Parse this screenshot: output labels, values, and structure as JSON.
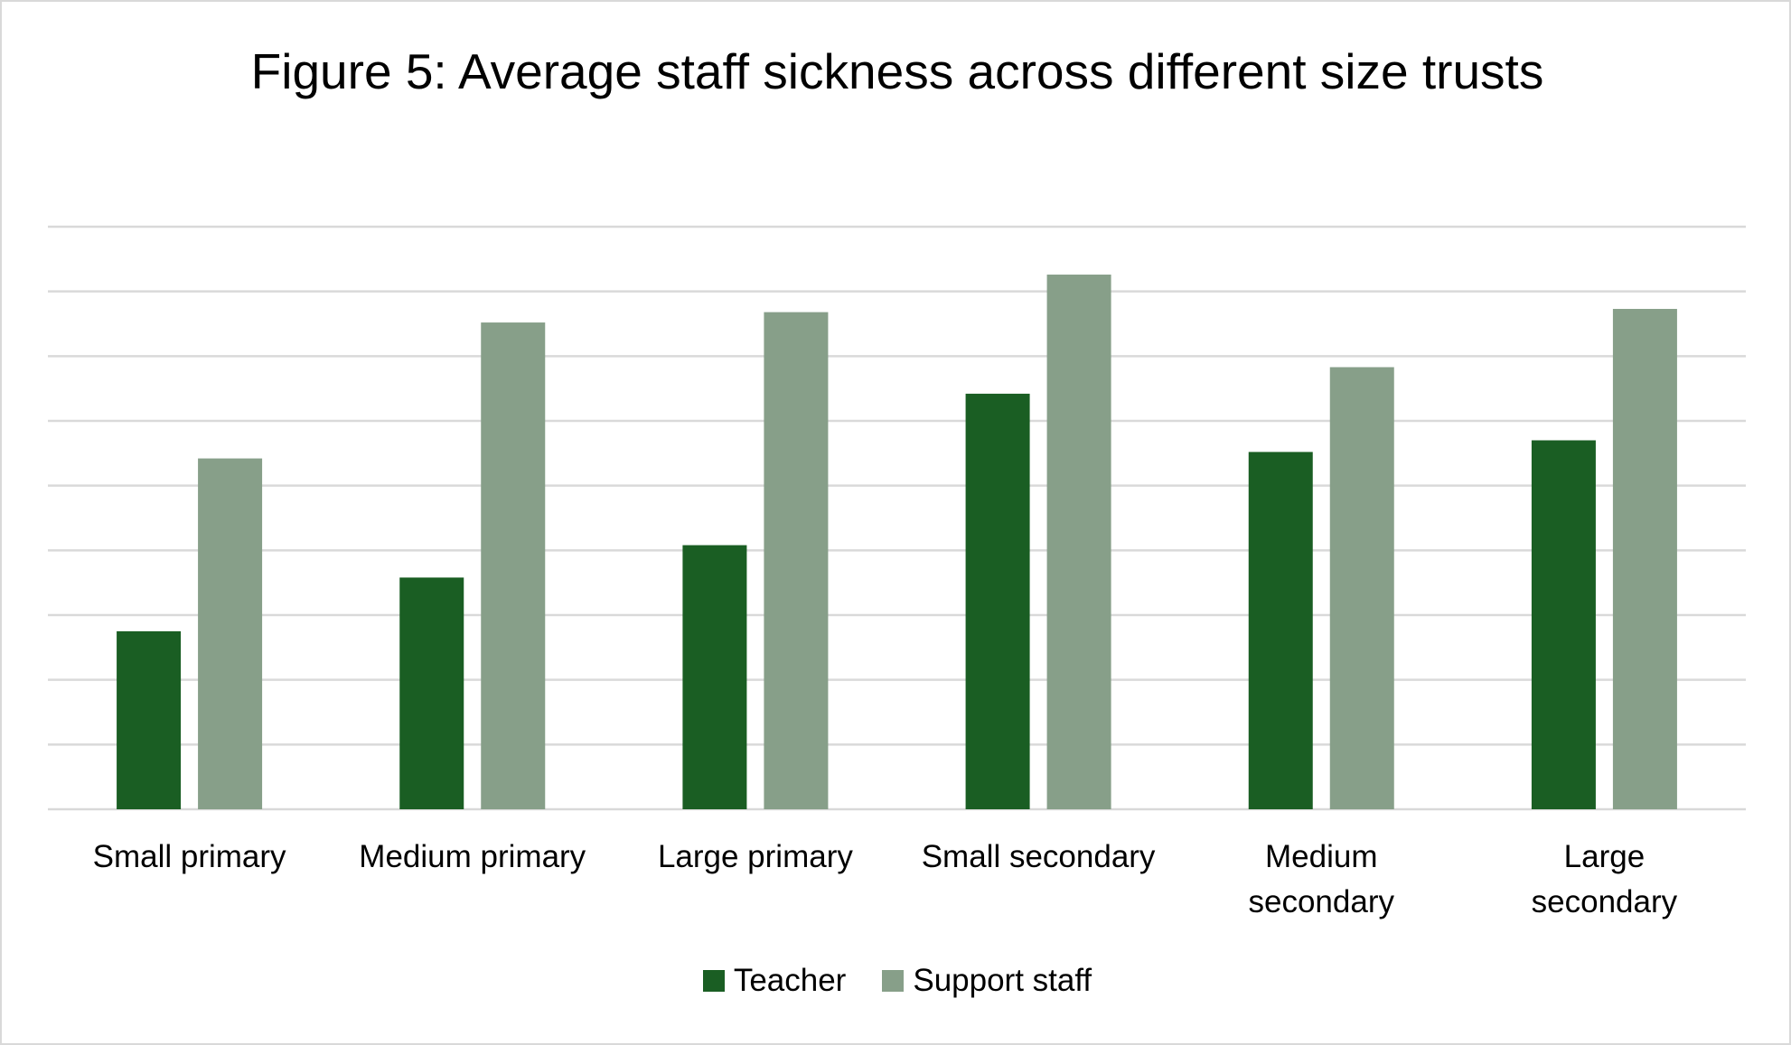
{
  "chart_data": {
    "type": "grouped-bar",
    "title": "Figure 5: Average staff sickness across different size trusts",
    "categories": [
      "Small primary",
      "Medium primary",
      "Large primary",
      "Small secondary",
      "Medium secondary",
      "Large secondary"
    ],
    "series": [
      {
        "name": "Teacher",
        "color": "#1a5e23",
        "values": [
          2.75,
          3.58,
          4.08,
          6.42,
          5.52,
          5.7
        ]
      },
      {
        "name": "Support staff",
        "color": "#879f89",
        "values": [
          5.42,
          7.52,
          7.68,
          8.26,
          6.83,
          7.73
        ]
      }
    ],
    "ylim": [
      0,
      9
    ],
    "yticks": [
      0,
      1,
      2,
      3,
      4,
      5,
      6,
      7,
      8,
      9
    ],
    "grid": true,
    "ytick_labels": false,
    "legend": "bottom"
  }
}
